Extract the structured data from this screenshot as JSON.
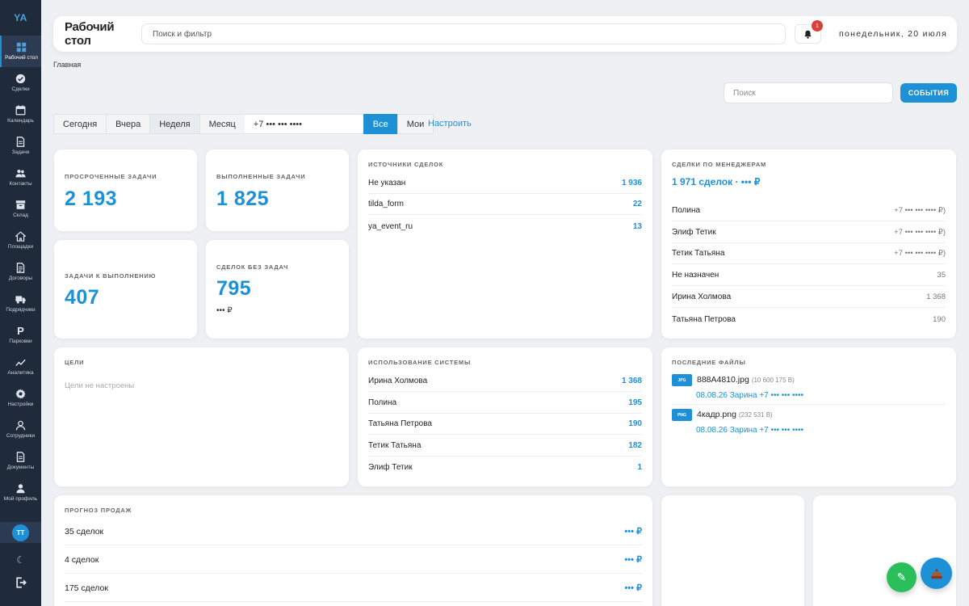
{
  "app": {
    "logo": "YA"
  },
  "sidebar": {
    "items": [
      {
        "label": "Рабочий стол",
        "icon": "dashboard-icon",
        "active": true
      },
      {
        "label": "Сделки",
        "icon": "check-circle-icon"
      },
      {
        "label": "Календарь",
        "icon": "calendar-icon"
      },
      {
        "label": "Задачи",
        "icon": "document-icon"
      },
      {
        "label": "Контакты",
        "icon": "users-icon"
      },
      {
        "label": "Склад",
        "icon": "archive-icon"
      },
      {
        "label": "Площадки",
        "icon": "home-icon"
      },
      {
        "label": "Договоры",
        "icon": "contract-icon"
      },
      {
        "label": "Подрядчики",
        "icon": "truck-icon"
      },
      {
        "label": "Парковки",
        "icon": "parking-icon"
      },
      {
        "label": "Аналитика",
        "icon": "chart-line-icon"
      },
      {
        "label": "Настройки",
        "icon": "gear-icon"
      },
      {
        "label": "Сотрудники",
        "icon": "user-icon"
      },
      {
        "label": "Документы",
        "icon": "file-icon"
      },
      {
        "label": "Мой профиль",
        "icon": "profile-icon"
      }
    ],
    "avatar_initials": "TT",
    "theme_glyph": "☾"
  },
  "header": {
    "title": "Рабочий стол",
    "search_placeholder": "Поиск и фильтр",
    "notifications_count": "1",
    "date": "понедельник, 20 июля"
  },
  "breadcrumb": "Главная",
  "toolbar": {
    "search_placeholder": "Поиск",
    "events_label": "СОБЫТИЯ"
  },
  "filters": {
    "periods": [
      "Сегодня",
      "Вчера",
      "Неделя",
      "Месяц"
    ],
    "selected_period": "Неделя",
    "phone": "+7 ••• ••• ••••",
    "scope_all": "Все",
    "scope_mine": "Мои",
    "configure_label": "Настроить"
  },
  "stats": {
    "overdue": {
      "label": "Просроченные задачи",
      "value": "2 193"
    },
    "done": {
      "label": "Выполненные задачи",
      "value": "1 825"
    },
    "todo": {
      "label": "Задачи к выполнению",
      "value": "407"
    },
    "no_tasks": {
      "label": "Сделок без задач",
      "value": "795",
      "sub": "••• ₽"
    }
  },
  "sources": {
    "title": "Источники сделок",
    "rows": [
      {
        "name": "Не указан",
        "value": "1 936"
      },
      {
        "name": "tilda_form",
        "value": "22"
      },
      {
        "name": "ya_event_ru",
        "value": "13"
      }
    ]
  },
  "managers": {
    "title": "Сделки по менеджерам",
    "total": "1 971 сделок · ••• ₽",
    "rows": [
      {
        "name": "Полина",
        "value": "+7 ••• ••• •••• ₽)"
      },
      {
        "name": "Элиф Тетик",
        "value": "+7 ••• ••• •••• ₽)"
      },
      {
        "name": "Тетик Татьяна",
        "value": "+7 ••• ••• •••• ₽)"
      },
      {
        "name": "Не назначен",
        "value": "35"
      },
      {
        "name": "Ирина Холмова",
        "value": "1 368"
      },
      {
        "name": "Татьяна Петрова",
        "value": "190"
      }
    ]
  },
  "goals": {
    "title": "Цели",
    "empty": "Цели не настроены"
  },
  "usage": {
    "title": "Использование системы",
    "rows": [
      {
        "name": "Ирина Холмова",
        "value": "1 368"
      },
      {
        "name": "Полина",
        "value": "195"
      },
      {
        "name": "Татьяна Петрова",
        "value": "190"
      },
      {
        "name": "Тетик Татьяна",
        "value": "182"
      },
      {
        "name": "Элиф Тетик",
        "value": "1"
      }
    ]
  },
  "files": {
    "title": "Последние файлы",
    "items": [
      {
        "type": "JPG",
        "name": "888A4810.jpg",
        "size": "(10 600 175 B)",
        "meta": "08.08.26 Зарина +7 ••• ••• ••••"
      },
      {
        "type": "PNG",
        "name": "4кадр.png",
        "size": "(232 531 B)",
        "meta": "08.08.26 Зарина +7 ••• ••• ••••"
      }
    ]
  },
  "forecast": {
    "title": "Прогноз продаж",
    "rows": [
      {
        "name": "35 сделок",
        "value": "••• ₽"
      },
      {
        "name": "4 сделок",
        "value": "••• ₽"
      },
      {
        "name": "175 сделок",
        "value": "••• ₽"
      }
    ]
  },
  "fabs": {
    "edit_glyph": "✎"
  }
}
